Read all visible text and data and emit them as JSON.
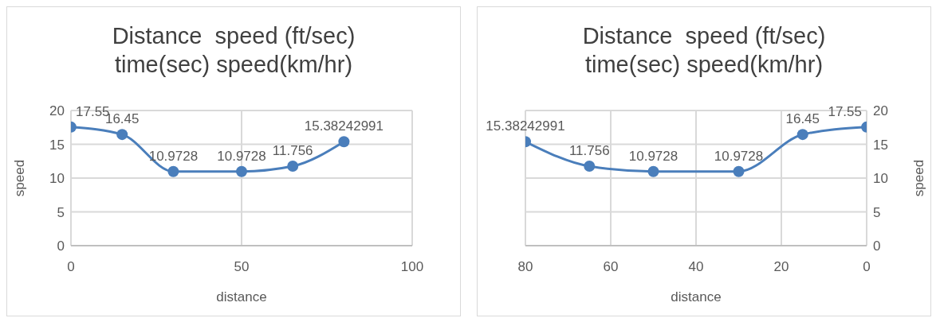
{
  "chart_data": [
    {
      "type": "line",
      "title": "Distance  speed (ft/sec) time(sec) speed(km/hr)",
      "xlabel": "distance",
      "ylabel": "speed",
      "x": [
        0,
        15,
        30,
        50,
        65,
        80
      ],
      "series": [
        {
          "color": "#4a7ebb",
          "values": [
            17.55,
            16.45,
            10.9728,
            10.9728,
            11.756,
            15.38242991
          ]
        }
      ],
      "xlim": [
        0,
        100
      ],
      "xticks": [
        0,
        50,
        100
      ],
      "ylim": [
        0,
        20
      ],
      "yticks": [
        0,
        5,
        10,
        15,
        20
      ],
      "grid": true,
      "marker": "circle",
      "data_labels": true
    },
    {
      "type": "line",
      "title": "Distance  speed (ft/sec) time(sec) speed(km/hr)",
      "xlabel": "distance",
      "y2label": "speed",
      "x": [
        80,
        65,
        50,
        30,
        15,
        0
      ],
      "series": [
        {
          "color": "#4a7ebb",
          "values": [
            15.38242991,
            11.756,
            10.9728,
            10.9728,
            16.45,
            17.55
          ],
          "axis": "y2"
        }
      ],
      "xlim": [
        80,
        0
      ],
      "xticks": [
        80,
        60,
        40,
        20,
        0
      ],
      "y2lim": [
        0,
        20
      ],
      "y2ticks": [
        0,
        5,
        10,
        15,
        20
      ],
      "grid": true,
      "marker": "circle",
      "data_labels": true
    }
  ]
}
